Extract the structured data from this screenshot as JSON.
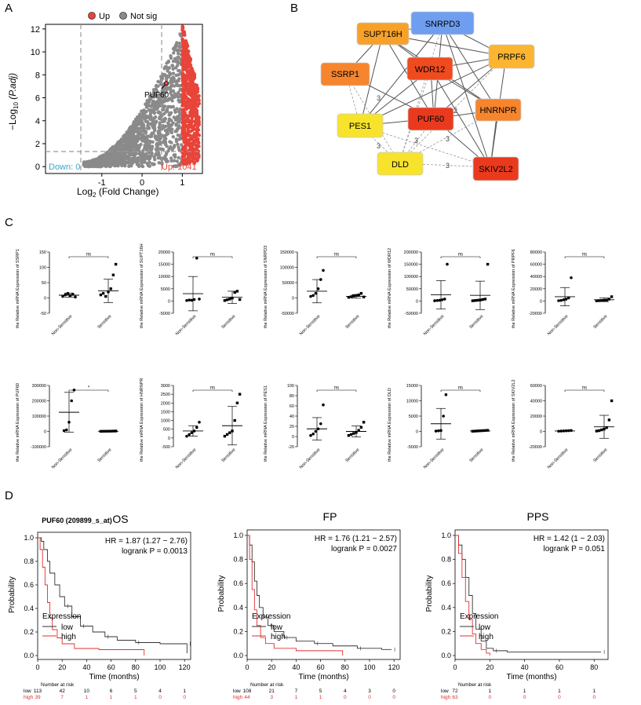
{
  "panels": {
    "A": "A",
    "B": "B",
    "C": "C",
    "D": "D"
  },
  "volcano": {
    "legend_up": "Up",
    "legend_notsig": "Not sig",
    "down_label": "Down: 0",
    "up_label": "Up: 1041",
    "annotation": "PUF60",
    "xlabel": "Log",
    "xlabel_sub": "2",
    "xlabel_rest": " (Fold Change)",
    "ylabel": "−Log",
    "ylabel_sub": "10",
    "ylabel_rest": " (P.adj)",
    "colors": {
      "up": "#e8443a",
      "notsig": "#8a8a8a",
      "down": "#3aa6c8"
    }
  },
  "network": {
    "nodes": [
      {
        "id": "SUPT16H",
        "label": "SUPT16H",
        "color": "#f7a12a"
      },
      {
        "id": "SNRPD3",
        "label": "SNRPD3",
        "color": "#6f9ef0"
      },
      {
        "id": "PRPF6",
        "label": "PRPF6",
        "color": "#fbb531"
      },
      {
        "id": "SSRP1",
        "label": "SSRP1",
        "color": "#f6852e"
      },
      {
        "id": "WDR12",
        "label": "WDR12",
        "color": "#ef4b1f"
      },
      {
        "id": "HNRNPR",
        "label": "HNRNPR",
        "color": "#f6852e"
      },
      {
        "id": "PES1",
        "label": "PES1",
        "color": "#f7e32c"
      },
      {
        "id": "PUF60",
        "label": "PUF60",
        "color": "#ea3a1e"
      },
      {
        "id": "DLD",
        "label": "DLD",
        "color": "#f7e32c"
      },
      {
        "id": "SKIV2L2",
        "label": "SKIV2L2",
        "color": "#ea3a1e"
      }
    ],
    "edge_labels": [
      "3",
      "2",
      "3",
      "3",
      "3",
      "3"
    ]
  },
  "scatter_common": {
    "ylabel_prefix": "the Relative mRNA Expression of ",
    "cat1": "Non-Sensitive",
    "cat2": "Sensitive"
  },
  "scatter_plots": [
    {
      "gene": "SSRP1",
      "sig": "ns",
      "ymin": -50,
      "ymax": 150,
      "ticks": [
        -50,
        0,
        50,
        100,
        150
      ],
      "g1": [
        5,
        10,
        15,
        8,
        12,
        3
      ],
      "g1_mean": 9,
      "g1_sd": 7,
      "g2": [
        10,
        15,
        5,
        20,
        30,
        75,
        110
      ],
      "g2_mean": 23,
      "g2_sd": 38
    },
    {
      "gene": "SUPT16H",
      "sig": "ns",
      "ymin": -5000,
      "ymax": 20000,
      "ticks": [
        -5000,
        0,
        5000,
        10000,
        15000,
        20000
      ],
      "g1": [
        200,
        400,
        300,
        600,
        17500,
        800
      ],
      "g1_mean": 3000,
      "g1_sd": 7000,
      "g2": [
        200,
        500,
        800,
        1200,
        3500,
        4000,
        600
      ],
      "g2_mean": 1500,
      "g2_sd": 2500
    },
    {
      "gene": "SNRPD3",
      "sig": "ns",
      "ymin": -50000,
      "ymax": 150000,
      "ticks": [
        -50000,
        0,
        50000,
        100000,
        150000
      ],
      "g1": [
        5000,
        8000,
        15000,
        30000,
        60000,
        90000
      ],
      "g1_mean": 22000,
      "g1_sd": 38000,
      "g2": [
        2000,
        4000,
        6000,
        8000,
        10000,
        15000,
        3000
      ],
      "g2_mean": 5000,
      "g2_sd": 6000
    },
    {
      "gene": "WDR12",
      "sig": "ns",
      "ymin": -50000,
      "ymax": 200000,
      "ticks": [
        -50000,
        0,
        50000,
        100000,
        150000,
        200000
      ],
      "g1": [
        1000,
        2000,
        3000,
        5000,
        8000,
        150000
      ],
      "g1_mean": 25000,
      "g1_sd": 58000,
      "g2": [
        1000,
        2000,
        3000,
        4000,
        6000,
        8000,
        150000
      ],
      "g2_mean": 23000,
      "g2_sd": 58000
    },
    {
      "gene": "PRPF6",
      "sig": "ns",
      "ymin": -20000,
      "ymax": 80000,
      "ticks": [
        -20000,
        0,
        20000,
        40000,
        60000,
        80000
      ],
      "g1": [
        500,
        1000,
        2000,
        3000,
        5000,
        38000
      ],
      "g1_mean": 7000,
      "g1_sd": 15000,
      "g2": [
        300,
        600,
        900,
        1200,
        1500,
        3000,
        7000
      ],
      "g2_mean": 2000,
      "g2_sd": 3000
    },
    {
      "gene": "PUF60",
      "sig": "*",
      "ymin": -100000,
      "ymax": 300000,
      "ticks": [
        -100000,
        0,
        100000,
        200000,
        300000
      ],
      "g1": [
        5000,
        10000,
        60000,
        200000,
        270000
      ],
      "g1_mean": 125000,
      "g1_sd": 130000,
      "g2": [
        500,
        800,
        1000,
        1200,
        1500,
        2000,
        2500
      ],
      "g2_mean": 1200,
      "g2_sd": 800
    },
    {
      "gene": "HNRNPR",
      "sig": "ns",
      "ymin": -500,
      "ymax": 3000,
      "ticks": [
        -500,
        0,
        500,
        1000,
        1500,
        2000,
        2500,
        3000
      ],
      "g1": [
        100,
        200,
        300,
        400,
        600,
        900
      ],
      "g1_mean": 400,
      "g1_sd": 300,
      "g2": [
        100,
        200,
        300,
        400,
        1000,
        2000,
        2500
      ],
      "g2_mean": 700,
      "g2_sd": 1100
    },
    {
      "gene": "PES1",
      "sig": "ns",
      "ymin": -20,
      "ymax": 100,
      "ticks": [
        -20,
        0,
        20,
        40,
        60,
        80,
        100
      ],
      "g1": [
        2,
        5,
        10,
        15,
        25,
        62
      ],
      "g1_mean": 15,
      "g1_sd": 22,
      "g2": [
        2,
        4,
        6,
        8,
        12,
        18,
        28
      ],
      "g2_mean": 10,
      "g2_sd": 11
    },
    {
      "gene": "DLD",
      "sig": "ns",
      "ymin": -5000,
      "ymax": 15000,
      "ticks": [
        -5000,
        0,
        5000,
        10000,
        15000
      ],
      "g1": [
        100,
        200,
        300,
        5000,
        12000
      ],
      "g1_mean": 2500,
      "g1_sd": 5000,
      "g2": [
        50,
        100,
        150,
        200,
        250,
        300,
        350
      ],
      "g2_mean": 150,
      "g2_sd": 120
    },
    {
      "gene": "SKIV2L2",
      "sig": "ns",
      "ymin": -20000,
      "ymax": 60000,
      "ticks": [
        -20000,
        0,
        20000,
        40000,
        60000
      ],
      "g1": [
        200,
        400,
        600,
        800,
        1000,
        1200
      ],
      "g1_mean": 600,
      "g1_sd": 500,
      "g2": [
        500,
        1000,
        2000,
        3000,
        5000,
        15000,
        40000
      ],
      "g2_mean": 6000,
      "g2_sd": 15000
    }
  ],
  "km_plots": [
    {
      "title": "OS",
      "subtitle": "PUF60 (209899_s_at)",
      "hr": "HR = 1.87 (1.27 − 2.76)",
      "logrank": "logrank P = 0.0013",
      "xmax": 125,
      "xticks": [
        0,
        20,
        40,
        60,
        80,
        100,
        120
      ],
      "risk_times": [
        "0",
        "20",
        "40",
        "60",
        "80",
        "100",
        "120"
      ],
      "risk_low": [
        "113",
        "42",
        "10",
        "6",
        "5",
        "4",
        "1"
      ],
      "risk_high": [
        "39",
        "7",
        "1",
        "1",
        "1",
        "0",
        "0"
      ],
      "low": [
        [
          0,
          1
        ],
        [
          3,
          0.97
        ],
        [
          5,
          0.9
        ],
        [
          8,
          0.8
        ],
        [
          10,
          0.7
        ],
        [
          14,
          0.6
        ],
        [
          18,
          0.5
        ],
        [
          22,
          0.42
        ],
        [
          28,
          0.33
        ],
        [
          35,
          0.25
        ],
        [
          45,
          0.2
        ],
        [
          55,
          0.16
        ],
        [
          65,
          0.13
        ],
        [
          80,
          0.11
        ],
        [
          100,
          0.1
        ],
        [
          122,
          0.1
        ],
        [
          122,
          0.02
        ]
      ],
      "high": [
        [
          0,
          1
        ],
        [
          2,
          0.9
        ],
        [
          4,
          0.75
        ],
        [
          6,
          0.6
        ],
        [
          8,
          0.45
        ],
        [
          10,
          0.32
        ],
        [
          12,
          0.22
        ],
        [
          16,
          0.15
        ],
        [
          20,
          0.1
        ],
        [
          30,
          0.06
        ],
        [
          50,
          0.05
        ],
        [
          87,
          0.05
        ],
        [
          87,
          0
        ]
      ]
    },
    {
      "title": "FP",
      "subtitle": "",
      "hr": "HR = 1.76 (1.21 − 2.57)",
      "logrank": "logrank P = 0.0027",
      "xmax": 125,
      "xticks": [
        0,
        20,
        40,
        60,
        80,
        100,
        120
      ],
      "risk_times": [
        "0",
        "20",
        "40",
        "60",
        "80",
        "100",
        "120"
      ],
      "risk_low": [
        "108",
        "21",
        "7",
        "5",
        "4",
        "3",
        "0"
      ],
      "risk_high": [
        "44",
        "3",
        "1",
        "1",
        "0",
        "0",
        "0"
      ],
      "low": [
        [
          0,
          1
        ],
        [
          2,
          0.92
        ],
        [
          4,
          0.78
        ],
        [
          6,
          0.62
        ],
        [
          8,
          0.5
        ],
        [
          10,
          0.4
        ],
        [
          13,
          0.32
        ],
        [
          17,
          0.25
        ],
        [
          22,
          0.2
        ],
        [
          30,
          0.15
        ],
        [
          40,
          0.12
        ],
        [
          55,
          0.1
        ],
        [
          70,
          0.08
        ],
        [
          90,
          0.06
        ],
        [
          110,
          0.05
        ],
        [
          118,
          0.05
        ]
      ],
      "high": [
        [
          0,
          1
        ],
        [
          2,
          0.8
        ],
        [
          4,
          0.55
        ],
        [
          6,
          0.38
        ],
        [
          8,
          0.25
        ],
        [
          11,
          0.15
        ],
        [
          15,
          0.1
        ],
        [
          22,
          0.06
        ],
        [
          40,
          0.04
        ],
        [
          78,
          0.04
        ],
        [
          78,
          0
        ]
      ]
    },
    {
      "title": "PPS",
      "subtitle": "",
      "hr": "HR = 1.42 (1 − 2.03)",
      "logrank": "logrank P = 0.051",
      "xmax": 88,
      "xticks": [
        0,
        20,
        40,
        60,
        80
      ],
      "risk_times": [
        "0",
        "20",
        "40",
        "60",
        "80"
      ],
      "risk_low": [
        "72",
        "1",
        "1",
        "1",
        "1"
      ],
      "risk_high": [
        "63",
        "0",
        "0",
        "0",
        "0"
      ],
      "low": [
        [
          0,
          1
        ],
        [
          2,
          0.92
        ],
        [
          4,
          0.8
        ],
        [
          6,
          0.65
        ],
        [
          8,
          0.5
        ],
        [
          10,
          0.35
        ],
        [
          12,
          0.22
        ],
        [
          15,
          0.12
        ],
        [
          18,
          0.06
        ],
        [
          22,
          0.04
        ],
        [
          30,
          0.03
        ],
        [
          84,
          0.03
        ]
      ],
      "high": [
        [
          0,
          1
        ],
        [
          2,
          0.85
        ],
        [
          4,
          0.65
        ],
        [
          6,
          0.45
        ],
        [
          8,
          0.3
        ],
        [
          10,
          0.18
        ],
        [
          12,
          0.1
        ],
        [
          15,
          0.05
        ],
        [
          18,
          0.02
        ],
        [
          20,
          0
        ]
      ]
    }
  ],
  "km_common": {
    "ylabel": "Probability",
    "xlabel": "Time (months)",
    "legend_title": "Expression",
    "legend_low": "low",
    "legend_high": "high",
    "risk_title": "Number at risk",
    "risk_low_label": "low",
    "risk_high_label": "high",
    "yticks": [
      "0.0",
      "0.2",
      "0.4",
      "0.6",
      "0.8",
      "1.0"
    ],
    "color_low": "#333333",
    "color_high": "#e03030"
  }
}
